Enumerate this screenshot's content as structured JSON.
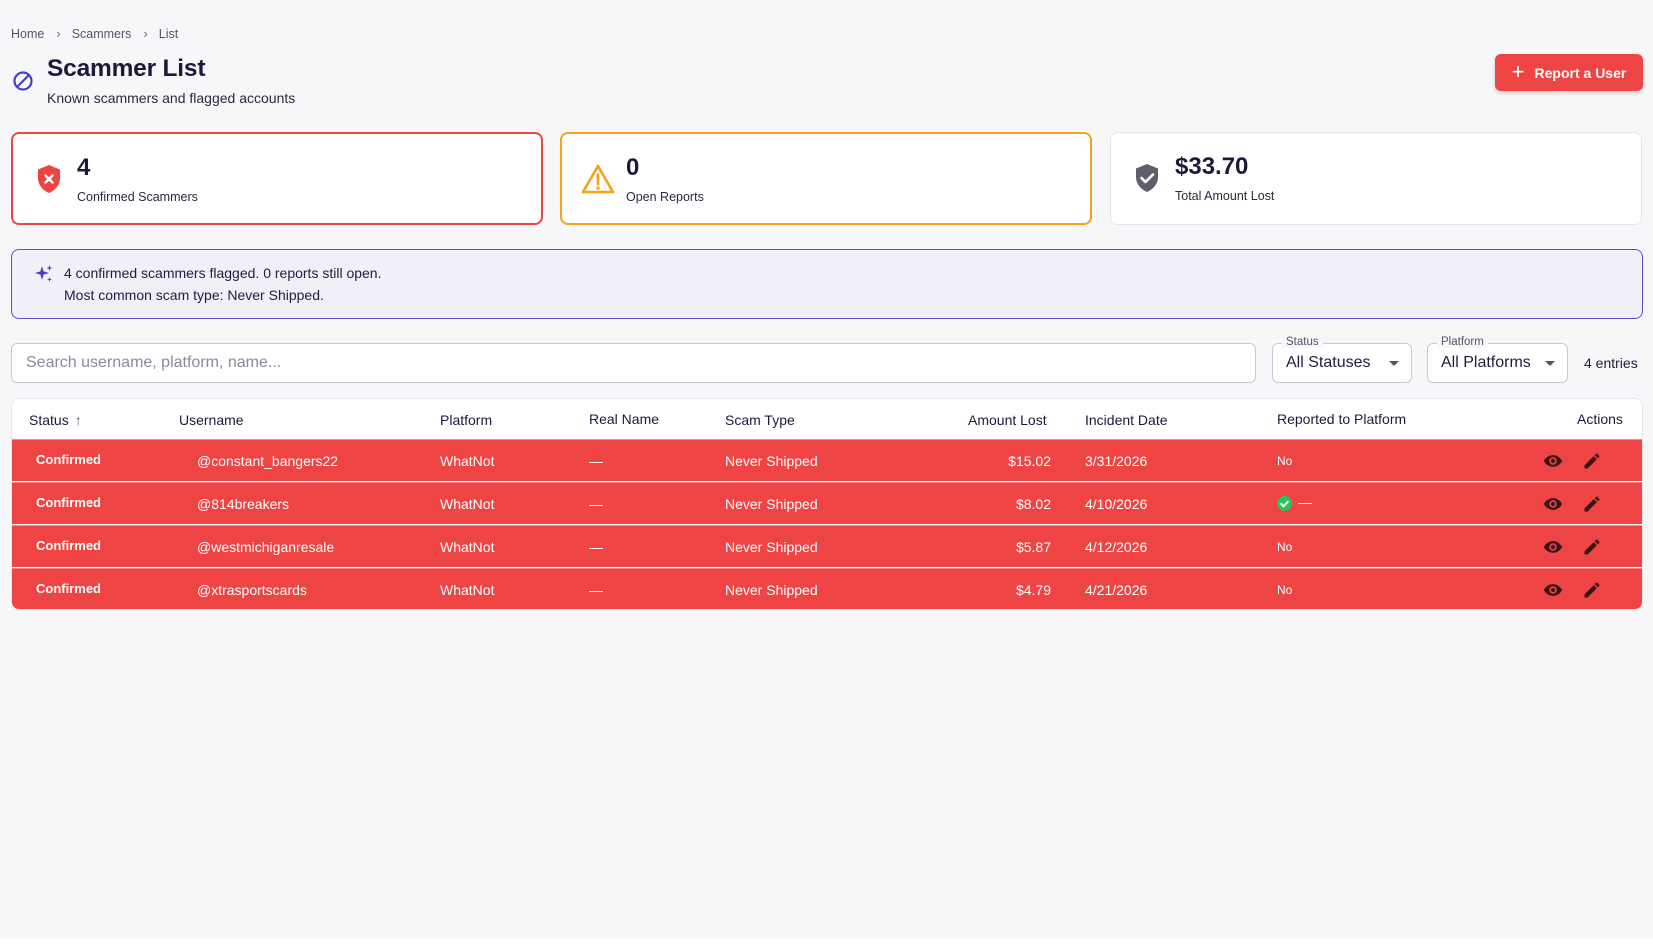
{
  "breadcrumb": {
    "items": [
      "Home",
      "Scammers",
      "List"
    ],
    "separator": "›"
  },
  "header": {
    "title": "Scammer List",
    "subtitle": "Known scammers and flagged accounts",
    "report_button_label": "Report a User"
  },
  "stats": [
    {
      "value": "4",
      "label": "Confirmed Scammers",
      "icon": "shield-x-icon",
      "accent": "#ef4444"
    },
    {
      "value": "0",
      "label": "Open Reports",
      "icon": "warning-triangle-icon",
      "accent": "#f5a21a"
    },
    {
      "value": "$33.70",
      "label": "Total Amount Lost",
      "icon": "shield-check-icon",
      "accent": "#5f5f6b"
    }
  ],
  "insight": {
    "line1": "4 confirmed scammers flagged. 0 reports still open.",
    "line2": "Most common scam type: Never Shipped.",
    "icon": "sparkle-icon"
  },
  "filters": {
    "search_placeholder": "Search username, platform, name...",
    "status_label": "Status",
    "status_value": "All Statuses",
    "platform_label": "Platform",
    "platform_value": "All Platforms",
    "entries": "4 entries"
  },
  "table": {
    "columns": [
      "Status",
      "Username",
      "Platform",
      "Real Name",
      "Scam Type",
      "Amount Lost",
      "Incident Date",
      "Reported to Platform",
      "Actions"
    ],
    "sort_indicator": "↑",
    "rows": [
      {
        "status": "Confirmed",
        "username": "@constant_bangers22",
        "platform": "WhatNot",
        "real_name": "—",
        "scam_type": "Never Shipped",
        "amount": "$15.02",
        "date": "3/31/2026",
        "reported": "No",
        "reported_flag": false
      },
      {
        "status": "Confirmed",
        "username": "@814breakers",
        "platform": "WhatNot",
        "real_name": "—",
        "scam_type": "Never Shipped",
        "amount": "$8.02",
        "date": "4/10/2026",
        "reported": "—",
        "reported_flag": true
      },
      {
        "status": "Confirmed",
        "username": "@westmichiganresale",
        "platform": "WhatNot",
        "real_name": "—",
        "scam_type": "Never Shipped",
        "amount": "$5.87",
        "date": "4/12/2026",
        "reported": "No",
        "reported_flag": false
      },
      {
        "status": "Confirmed",
        "username": "@xtrasportscards",
        "platform": "WhatNot",
        "real_name": "—",
        "scam_type": "Never Shipped",
        "amount": "$4.79",
        "date": "4/21/2026",
        "reported": "No",
        "reported_flag": false
      }
    ]
  },
  "colors": {
    "accent_red": "#ef4444",
    "accent_orange": "#f5a21a",
    "accent_indigo": "#5b50c8",
    "success_green": "#22c55e"
  }
}
